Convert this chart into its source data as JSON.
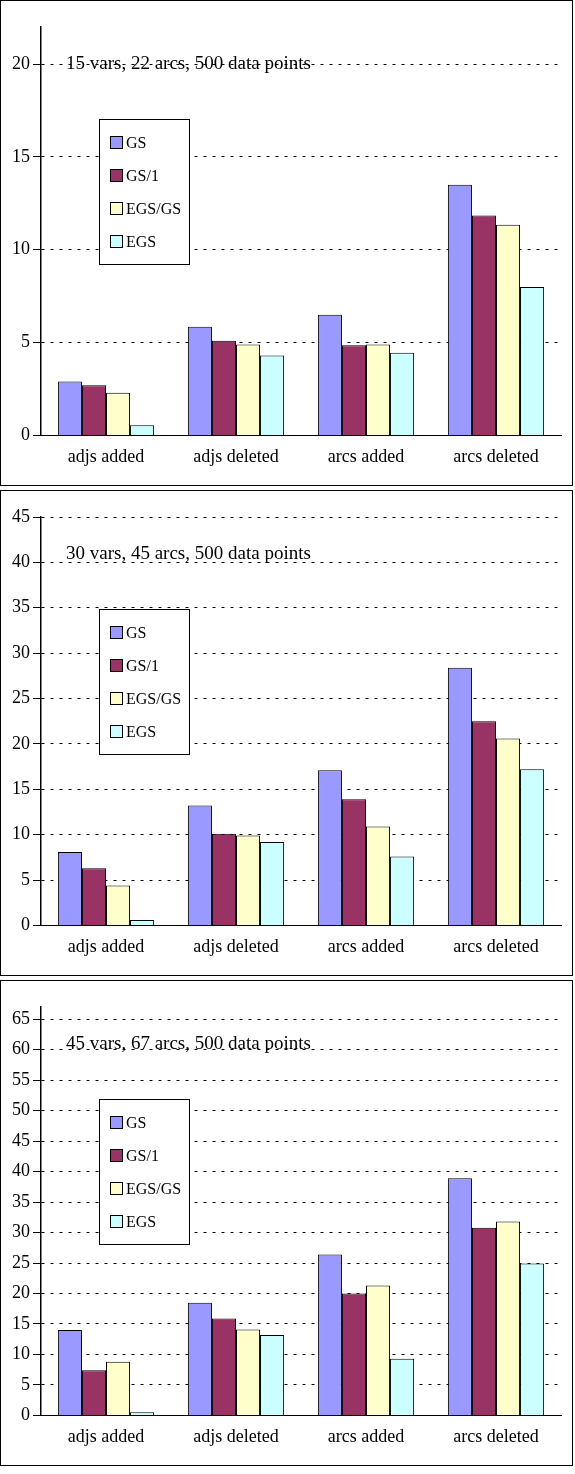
{
  "chart_data": [
    {
      "type": "bar",
      "title": "15 vars, 22 arcs, 500 data points",
      "categories": [
        "adjs added",
        "adjs deleted",
        "arcs added",
        "arcs deleted"
      ],
      "series": [
        {
          "name": "GS",
          "color": "#9999ff",
          "values": [
            2.9,
            5.85,
            6.5,
            13.5
          ]
        },
        {
          "name": "GS/1",
          "color": "#993366",
          "values": [
            2.7,
            5.1,
            4.85,
            11.85
          ]
        },
        {
          "name": "EGS/GS",
          "color": "#ffffcc",
          "values": [
            2.3,
            4.9,
            4.9,
            11.35
          ]
        },
        {
          "name": "EGS",
          "color": "#ccffff",
          "values": [
            0.55,
            4.3,
            4.45,
            8.0
          ]
        }
      ],
      "ylim": [
        0,
        22
      ],
      "yticks": [
        0,
        5,
        10,
        15,
        20
      ],
      "grid": "y",
      "legend": "top left"
    },
    {
      "type": "bar",
      "title": "30 vars, 45 arcs, 500 data points",
      "categories": [
        "adjs added",
        "adjs deleted",
        "arcs added",
        "arcs deleted"
      ],
      "series": [
        {
          "name": "GS",
          "color": "#9999ff",
          "values": [
            8.1,
            13.2,
            17.1,
            28.4
          ]
        },
        {
          "name": "GS/1",
          "color": "#993366",
          "values": [
            6.3,
            10.1,
            13.9,
            22.5
          ]
        },
        {
          "name": "EGS/GS",
          "color": "#ffffcc",
          "values": [
            4.4,
            9.9,
            10.9,
            20.6
          ]
        },
        {
          "name": "EGS",
          "color": "#ccffff",
          "values": [
            0.6,
            9.2,
            7.6,
            17.2
          ]
        }
      ],
      "ylim": [
        0,
        45
      ],
      "yticks": [
        0,
        5,
        10,
        15,
        20,
        25,
        30,
        35,
        40,
        45
      ],
      "grid": "y",
      "legend": "top left"
    },
    {
      "type": "bar",
      "title": "45 vars, 67 arcs, 500 data points",
      "categories": [
        "adjs added",
        "adjs deleted",
        "arcs added",
        "arcs deleted"
      ],
      "series": [
        {
          "name": "GS",
          "color": "#9999ff",
          "values": [
            14.0,
            18.5,
            26.4,
            38.9
          ]
        },
        {
          "name": "GS/1",
          "color": "#993366",
          "values": [
            7.4,
            15.9,
            20.0,
            30.8
          ]
        },
        {
          "name": "EGS/GS",
          "color": "#ffffcc",
          "values": [
            8.8,
            14.1,
            21.3,
            31.8
          ]
        },
        {
          "name": "EGS",
          "color": "#ccffff",
          "values": [
            0.5,
            13.2,
            9.3,
            24.9
          ]
        }
      ],
      "ylim": [
        0,
        67
      ],
      "yticks": [
        0,
        5,
        10,
        15,
        20,
        25,
        30,
        35,
        40,
        45,
        50,
        55,
        60,
        65
      ],
      "grid": "y",
      "legend": "top left"
    }
  ]
}
